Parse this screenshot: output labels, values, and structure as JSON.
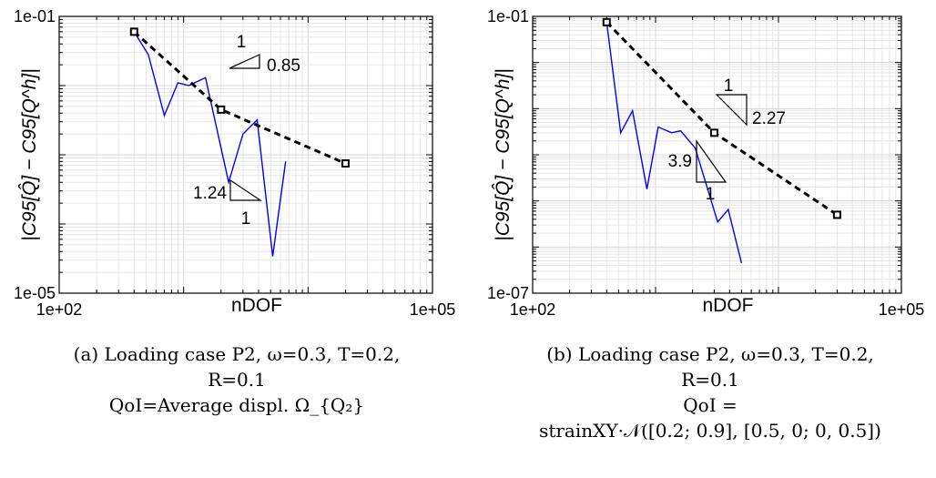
{
  "chart_data": [
    {
      "type": "line",
      "xlabel": "nDOF",
      "ylabel": "|C95[Q̂] − C95[Q^h]|",
      "xscale": "log",
      "yscale": "log",
      "xlim": [
        100,
        100000
      ],
      "ylim": [
        1e-05,
        0.1
      ],
      "grid": true,
      "x_tick_labels": [
        "1e+02",
        "1e+05"
      ],
      "y_tick_labels": [
        "1e-05",
        "1e-01"
      ],
      "series": [
        {
          "style": "solid",
          "color": "#0000ff",
          "points": [
            [
              400,
              0.06
            ],
            [
              520,
              0.028
            ],
            [
              700,
              0.0037
            ],
            [
              900,
              0.011
            ],
            [
              1100,
              0.01
            ],
            [
              1500,
              0.013
            ],
            [
              2300,
              0.0004
            ],
            [
              3000,
              0.002
            ],
            [
              3900,
              0.0032
            ],
            [
              5200,
              3.4e-05
            ],
            [
              6600,
              0.0008
            ]
          ]
        },
        {
          "style": "dashed",
          "color": "#000000",
          "marker": "square",
          "points": [
            [
              400,
              0.06
            ],
            [
              2000,
              0.0045
            ],
            [
              20000,
              0.00075
            ]
          ]
        }
      ],
      "annotations": [
        {
          "type": "slope-triangle",
          "run": "1",
          "rise": "0.85"
        },
        {
          "type": "slope-triangle",
          "run": "1",
          "rise": "1.24"
        }
      ],
      "caption": [
        "(a) Loading case P2, ω=0.3, T=0.2,",
        "R=0.1",
        "QoI=Average displ. Ω_{Q₂}"
      ]
    },
    {
      "type": "line",
      "xlabel": "nDOF",
      "ylabel": "|C95[Q̂] − C95[Q^h]|",
      "xscale": "log",
      "yscale": "log",
      "xlim": [
        100,
        100000
      ],
      "ylim": [
        1e-07,
        0.1
      ],
      "grid": true,
      "x_tick_labels": [
        "1e+02",
        "1e+05"
      ],
      "y_tick_labels": [
        "1e-07",
        "1e-01"
      ],
      "series": [
        {
          "style": "solid",
          "color": "#0000ff",
          "points": [
            [
              400,
              0.075
            ],
            [
              520,
              0.0003
            ],
            [
              650,
              0.0009
            ],
            [
              850,
              1.8e-05
            ],
            [
              1050,
              0.0004
            ],
            [
              1350,
              0.0003
            ],
            [
              1600,
              0.00033
            ],
            [
              2100,
              0.00014
            ],
            [
              3200,
              3.5e-06
            ],
            [
              3900,
              6.5e-06
            ],
            [
              5000,
              4.5e-07
            ]
          ]
        },
        {
          "style": "dashed",
          "color": "#000000",
          "marker": "square",
          "points": [
            [
              400,
              0.075
            ],
            [
              3000,
              0.0003
            ],
            [
              30000,
              5e-06
            ]
          ]
        }
      ],
      "annotations": [
        {
          "type": "slope-triangle",
          "run": "1",
          "rise": "2.27"
        },
        {
          "type": "slope-triangle",
          "run": "1",
          "rise": "3.9"
        }
      ],
      "caption": [
        "(b) Loading case P2, ω=0.3, T=0.2,",
        "R=0.1",
        "QoI =",
        "strainXY·𝒩([0.2; 0.9], [0.5, 0; 0, 0.5])"
      ]
    }
  ]
}
